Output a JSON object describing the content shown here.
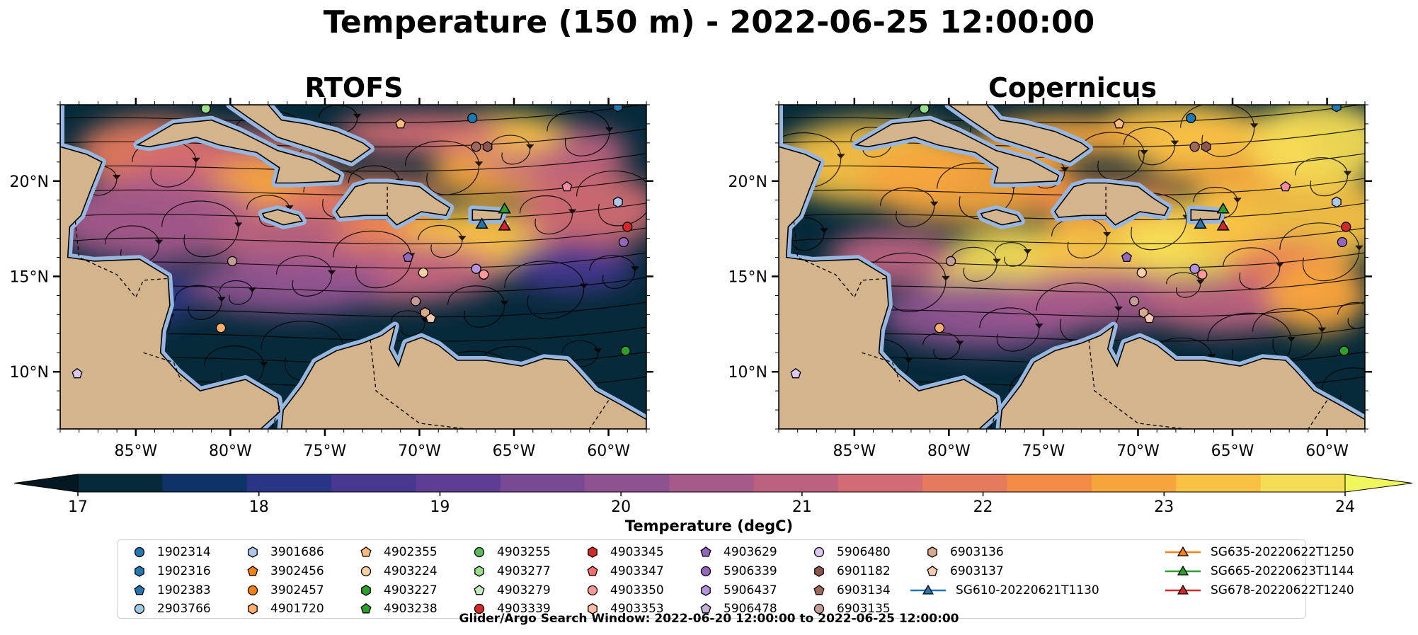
{
  "figure": {
    "title": "Temperature (150 m) - 2022-06-25 12:00:00",
    "footnote": "Glider/Argo Search Window: 2022-06-20 12:00:00 to 2022-06-25 12:00:00"
  },
  "panels": [
    {
      "title": "RTOFS",
      "style": "rtofs"
    },
    {
      "title": "Copernicus",
      "style": "copernicus"
    }
  ],
  "map_extent": {
    "lon": [
      -89,
      -58
    ],
    "lat": [
      7,
      24
    ]
  },
  "lon_ticks": [
    {
      "value": -85,
      "label": "85°W"
    },
    {
      "value": -80,
      "label": "80°W"
    },
    {
      "value": -75,
      "label": "75°W"
    },
    {
      "value": -70,
      "label": "70°W"
    },
    {
      "value": -65,
      "label": "65°W"
    },
    {
      "value": -60,
      "label": "60°W"
    }
  ],
  "lat_ticks": [
    {
      "value": 20,
      "label": "20°N"
    },
    {
      "value": 15,
      "label": "15°N"
    },
    {
      "value": 10,
      "label": "10°N"
    }
  ],
  "colorbar": {
    "label": "Temperature (degC)",
    "min": 17,
    "max": 24,
    "ticks": [
      "17",
      "18",
      "19",
      "20",
      "21",
      "22",
      "23",
      "24"
    ],
    "colors": [
      "#062a3a",
      "#0e3366",
      "#2a3585",
      "#47378f",
      "#5e3e94",
      "#774a93",
      "#8e5290",
      "#a55a8a",
      "#bc6280",
      "#d26b72",
      "#e57a5c",
      "#f28c45",
      "#f6a43c",
      "#f8c144",
      "#f5dc55"
    ],
    "under_color": "#031822",
    "over_color": "#f0f75a"
  },
  "colors": {
    "land": "#d4b48c",
    "shallow": "#97b7e0",
    "deep": "#062a3a"
  },
  "legend": [
    {
      "label": "1902314",
      "marker": "circle",
      "color": "#1f77b4"
    },
    {
      "label": "1902316",
      "marker": "hexagon",
      "color": "#1f77b4"
    },
    {
      "label": "1902383",
      "marker": "pentagon",
      "color": "#1f77b4"
    },
    {
      "label": "2903766",
      "marker": "circle",
      "color": "#9ecae1"
    },
    {
      "label": "3901686",
      "marker": "hexagon",
      "color": "#aec7e8"
    },
    {
      "label": "3902456",
      "marker": "pentagon",
      "color": "#ff7f0e"
    },
    {
      "label": "3902457",
      "marker": "circle",
      "color": "#ff7f0e"
    },
    {
      "label": "4901720",
      "marker": "hexagon",
      "color": "#fdae6b"
    },
    {
      "label": "4902355",
      "marker": "pentagon",
      "color": "#ffbb78"
    },
    {
      "label": "4903224",
      "marker": "circle",
      "color": "#fdd0a2"
    },
    {
      "label": "4903227",
      "marker": "hexagon",
      "color": "#2ca02c"
    },
    {
      "label": "4903238",
      "marker": "pentagon",
      "color": "#2ca02c"
    },
    {
      "label": "4903255",
      "marker": "circle",
      "color": "#5cb85c"
    },
    {
      "label": "4903277",
      "marker": "hexagon",
      "color": "#98df8a"
    },
    {
      "label": "4903279",
      "marker": "pentagon",
      "color": "#c7e9c0"
    },
    {
      "label": "4903339",
      "marker": "circle",
      "color": "#d62728"
    },
    {
      "label": "4903345",
      "marker": "hexagon",
      "color": "#d62728"
    },
    {
      "label": "4903347",
      "marker": "pentagon",
      "color": "#ff6b6b"
    },
    {
      "label": "4903350",
      "marker": "circle",
      "color": "#ff9896"
    },
    {
      "label": "4903353",
      "marker": "hexagon",
      "color": "#fcbba1"
    },
    {
      "label": "4903629",
      "marker": "pentagon",
      "color": "#9467bd"
    },
    {
      "label": "5906339",
      "marker": "circle",
      "color": "#9467bd"
    },
    {
      "label": "5906437",
      "marker": "hexagon",
      "color": "#b294e0"
    },
    {
      "label": "5906478",
      "marker": "pentagon",
      "color": "#c5b0d5"
    },
    {
      "label": "5906480",
      "marker": "circle",
      "color": "#dcc7f0"
    },
    {
      "label": "6901182",
      "marker": "hexagon",
      "color": "#8c564b"
    },
    {
      "label": "6903134",
      "marker": "pentagon",
      "color": "#a0685a"
    },
    {
      "label": "6903135",
      "marker": "circle",
      "color": "#c49c94"
    },
    {
      "label": "6903136",
      "marker": "hexagon",
      "color": "#d9a88c"
    },
    {
      "label": "6903137",
      "marker": "pentagon",
      "color": "#f7c9b0"
    },
    {
      "label": "SG610-20220621T1130",
      "marker": "triangle-line",
      "color": "#1f77b4"
    },
    {
      "label": "SG635-20220622T1250",
      "marker": "triangle-line",
      "color": "#ff7f0e"
    },
    {
      "label": "SG665-20220623T1144",
      "marker": "triangle-line",
      "color": "#2ca02c"
    },
    {
      "label": "SG678-20220622T1240",
      "marker": "triangle-line",
      "color": "#d62728"
    }
  ],
  "floats": [
    {
      "lon": -67.2,
      "lat": 23.3,
      "marker": "circle",
      "color": "#1f77b4"
    },
    {
      "lon": -59.5,
      "lat": 23.9,
      "marker": "hexagon",
      "color": "#1f77b4"
    },
    {
      "lon": -59.5,
      "lat": 18.9,
      "marker": "hexagon",
      "color": "#aec7e8"
    },
    {
      "lon": -81.3,
      "lat": 23.8,
      "marker": "circle",
      "color": "#98df8a"
    },
    {
      "lon": -71.0,
      "lat": 23.0,
      "marker": "pentagon",
      "color": "#ffbb78"
    },
    {
      "lon": -67.0,
      "lat": 21.8,
      "marker": "circle",
      "color": "#a0685a"
    },
    {
      "lon": -66.4,
      "lat": 21.8,
      "marker": "hexagon",
      "color": "#8c564b"
    },
    {
      "lon": -79.9,
      "lat": 15.8,
      "marker": "circle",
      "color": "#c49c94"
    },
    {
      "lon": -70.6,
      "lat": 16.0,
      "marker": "pentagon",
      "color": "#9467bd"
    },
    {
      "lon": -69.8,
      "lat": 15.2,
      "marker": "circle",
      "color": "#fdd0a2"
    },
    {
      "lon": -67.0,
      "lat": 15.4,
      "marker": "circle",
      "color": "#b294e0"
    },
    {
      "lon": -66.6,
      "lat": 15.1,
      "marker": "circle",
      "color": "#ff9896"
    },
    {
      "lon": -70.2,
      "lat": 13.7,
      "marker": "circle",
      "color": "#c49c94"
    },
    {
      "lon": -69.7,
      "lat": 13.1,
      "marker": "hexagon",
      "color": "#d9a88c"
    },
    {
      "lon": -69.4,
      "lat": 12.8,
      "marker": "pentagon",
      "color": "#f7c9b0"
    },
    {
      "lon": -80.5,
      "lat": 12.3,
      "marker": "circle",
      "color": "#fdae6b"
    },
    {
      "lon": -59.0,
      "lat": 17.6,
      "marker": "circle",
      "color": "#d62728"
    },
    {
      "lon": -59.2,
      "lat": 16.8,
      "marker": "circle",
      "color": "#9467bd"
    },
    {
      "lon": -59.1,
      "lat": 11.1,
      "marker": "circle",
      "color": "#2ca02c"
    },
    {
      "lon": -88.1,
      "lat": 9.9,
      "marker": "pentagon",
      "color": "#dcc7f0"
    },
    {
      "lon": -62.2,
      "lat": 19.7,
      "marker": "pentagon",
      "color": "#f28ca0"
    }
  ],
  "gliders": [
    {
      "lon": -65.5,
      "lat": 18.5,
      "color": "#2ca02c",
      "track": [
        [
          -65.7,
          18.3
        ],
        [
          -65.5,
          18.5
        ]
      ]
    },
    {
      "lon": -66.7,
      "lat": 17.7,
      "color": "#1f77b4",
      "track": [
        [
          -66.6,
          17.8
        ],
        [
          -66.7,
          17.7
        ]
      ]
    },
    {
      "lon": -65.5,
      "lat": 17.6,
      "color": "#d62728",
      "track": [
        [
          -65.3,
          17.8
        ],
        [
          -65.5,
          17.6
        ]
      ]
    }
  ],
  "geography": {
    "land": [
      {
        "name": "North America",
        "coords": [
          [
            -89,
            24
          ],
          [
            -89,
            21.8
          ],
          [
            -87.6,
            21.4
          ],
          [
            -86.8,
            21
          ],
          [
            -87.4,
            19.5
          ],
          [
            -87.9,
            18.2
          ],
          [
            -88.5,
            17.6
          ],
          [
            -88.6,
            16
          ],
          [
            -87.2,
            15.8
          ],
          [
            -84.8,
            15.9
          ],
          [
            -83.3,
            15
          ],
          [
            -83.2,
            13.5
          ],
          [
            -83.6,
            12.2
          ],
          [
            -83.7,
            11
          ],
          [
            -82.8,
            10
          ],
          [
            -81.6,
            9
          ],
          [
            -80.0,
            9.4
          ],
          [
            -79.2,
            9.6
          ],
          [
            -77.5,
            8.6
          ],
          [
            -77.4,
            7.9
          ],
          [
            -78.4,
            7
          ],
          [
            -89,
            7
          ]
        ]
      },
      {
        "name": "South America",
        "coords": [
          [
            -77.3,
            7
          ],
          [
            -77.2,
            8
          ],
          [
            -76.2,
            9.3
          ],
          [
            -75.5,
            10.5
          ],
          [
            -74.4,
            11.1
          ],
          [
            -73.0,
            11.5
          ],
          [
            -72.0,
            11.9
          ],
          [
            -71.3,
            12.4
          ],
          [
            -71.6,
            11.2
          ],
          [
            -71.1,
            10.3
          ],
          [
            -70.7,
            11.5
          ],
          [
            -69.9,
            11.8
          ],
          [
            -69.0,
            11.4
          ],
          [
            -68.0,
            10.6
          ],
          [
            -66.5,
            10.6
          ],
          [
            -64.6,
            10.3
          ],
          [
            -63.4,
            10.7
          ],
          [
            -62.2,
            10.6
          ],
          [
            -61.7,
            10.1
          ],
          [
            -60.7,
            9.0
          ],
          [
            -59.4,
            8.3
          ],
          [
            -58,
            7.5
          ],
          [
            -58,
            7
          ]
        ]
      },
      {
        "name": "Cuba",
        "coords": [
          [
            -84.9,
            21.9
          ],
          [
            -83.0,
            23.0
          ],
          [
            -81.0,
            23.2
          ],
          [
            -79.5,
            22.6
          ],
          [
            -77.5,
            21.6
          ],
          [
            -75.7,
            21.1
          ],
          [
            -74.2,
            20.3
          ],
          [
            -74.3,
            20.0
          ],
          [
            -76.6,
            19.9
          ],
          [
            -77.6,
            19.9
          ],
          [
            -77.4,
            20.7
          ],
          [
            -78.6,
            21.5
          ],
          [
            -80.6,
            21.9
          ],
          [
            -81.8,
            22.3
          ],
          [
            -83.2,
            22.0
          ],
          [
            -84.3,
            21.8
          ]
        ]
      },
      {
        "name": "Hispaniola",
        "coords": [
          [
            -74.4,
            18.4
          ],
          [
            -73.4,
            19.7
          ],
          [
            -72.7,
            19.9
          ],
          [
            -71.7,
            19.9
          ],
          [
            -70.0,
            19.7
          ],
          [
            -69.2,
            19.1
          ],
          [
            -68.4,
            18.6
          ],
          [
            -68.6,
            18.2
          ],
          [
            -69.9,
            18.4
          ],
          [
            -71.2,
            17.7
          ],
          [
            -71.7,
            18.2
          ],
          [
            -72.9,
            18.2
          ],
          [
            -74.2,
            18.1
          ]
        ]
      },
      {
        "name": "Jamaica",
        "coords": [
          [
            -78.3,
            18.3
          ],
          [
            -77.5,
            18.5
          ],
          [
            -76.4,
            18.2
          ],
          [
            -76.2,
            17.9
          ],
          [
            -77.2,
            17.7
          ],
          [
            -78.2,
            18.1
          ]
        ]
      },
      {
        "name": "Puerto Rico",
        "coords": [
          [
            -67.2,
            18.5
          ],
          [
            -65.6,
            18.4
          ],
          [
            -65.7,
            18.0
          ],
          [
            -67.2,
            17.95
          ]
        ]
      },
      {
        "name": "Bahamas",
        "coords": [
          [
            -78.0,
            24
          ],
          [
            -77.3,
            23.2
          ],
          [
            -76.0,
            23.0
          ],
          [
            -74.4,
            22.6
          ],
          [
            -73.0,
            22.0
          ],
          [
            -72.6,
            21.7
          ],
          [
            -73.6,
            21.0
          ],
          [
            -75.6,
            21.7
          ],
          [
            -77.5,
            22.3
          ],
          [
            -79.0,
            23.3
          ],
          [
            -80.0,
            24
          ]
        ]
      }
    ],
    "borders": [
      [
        [
          -88.2,
          17.9
        ],
        [
          -88.0,
          16.0
        ],
        [
          -86.0,
          15.1
        ],
        [
          -85.0,
          13.9
        ],
        [
          -84.6,
          14.8
        ],
        [
          -83.2,
          14.9
        ]
      ],
      [
        [
          -84.6,
          11.0
        ],
        [
          -83.0,
          10.5
        ],
        [
          -82.6,
          9.5
        ]
      ],
      [
        [
          -77.4,
          8.2
        ],
        [
          -77.8,
          7
        ]
      ],
      [
        [
          -72.6,
          11.7
        ],
        [
          -72.3,
          9.0
        ],
        [
          -70.0,
          7.3
        ],
        [
          -67.5,
          7.0
        ]
      ],
      [
        [
          -60.0,
          8.5
        ],
        [
          -61.0,
          7.0
        ]
      ],
      [
        [
          -71.7,
          19.7
        ],
        [
          -71.7,
          18.0
        ]
      ]
    ]
  }
}
